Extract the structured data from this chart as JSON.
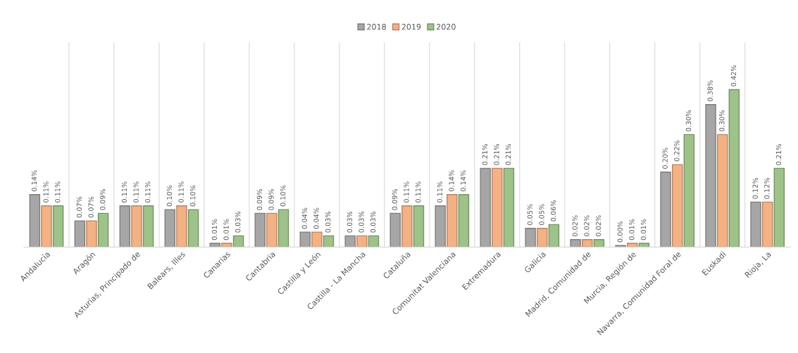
{
  "chart_data": {
    "type": "bar",
    "categories": [
      "Andalucía",
      "Aragón",
      "Asturias, Principado de",
      "Balears, Illes",
      "Canarias",
      "Cantabria",
      "Castilla y León",
      "Castilla - La Mancha",
      "Cataluña",
      "Comunitat Valenciana",
      "Extremadura",
      "Galicia",
      "Madrid, Comunidad de",
      "Murcia, Región de",
      "Navarra, Comunidad Foral de",
      "Euskadi",
      "Rioja, La"
    ],
    "series": [
      {
        "name": "2018",
        "color": "#a6a6a6",
        "values": [
          0.14,
          0.07,
          0.11,
          0.1,
          0.01,
          0.09,
          0.04,
          0.03,
          0.09,
          0.11,
          0.21,
          0.05,
          0.02,
          0.004,
          0.2,
          0.38,
          0.12
        ],
        "value_labels": [
          "0.14%",
          "0.07%",
          "0.11%",
          "0.10%",
          "0.01%",
          "0.09%",
          "0.04%",
          "0.03%",
          "0.09%",
          "0.11%",
          "0.21%",
          "0.05%",
          "0.02%",
          "0.00%",
          "0.20%",
          "0.38%",
          "0.12%"
        ]
      },
      {
        "name": "2019",
        "color": "#f4b183",
        "values": [
          0.11,
          0.07,
          0.11,
          0.11,
          0.01,
          0.09,
          0.04,
          0.03,
          0.11,
          0.14,
          0.21,
          0.05,
          0.02,
          0.01,
          0.22,
          0.3,
          0.12
        ],
        "value_labels": [
          "0.11%",
          "0.07%",
          "0.11%",
          "0.11%",
          "0.01%",
          "0.09%",
          "0.04%",
          "0.03%",
          "0.11%",
          "0.14%",
          "0.21%",
          "0.05%",
          "0.02%",
          "0.01%",
          "0.22%",
          "0.30%",
          "0.12%"
        ]
      },
      {
        "name": "2020",
        "color": "#9dc388",
        "values": [
          0.11,
          0.09,
          0.11,
          0.1,
          0.03,
          0.1,
          0.03,
          0.03,
          0.11,
          0.14,
          0.21,
          0.06,
          0.02,
          0.01,
          0.3,
          0.42,
          0.21
        ],
        "value_labels": [
          "0.11%",
          "0.09%",
          "0.11%",
          "0.10%",
          "0.03%",
          "0.10%",
          "0.03%",
          "0.03%",
          "0.11%",
          "0.14%",
          "0.21%",
          "0.06%",
          "0.02%",
          "0.01%",
          "0.30%",
          "0.42%",
          "0.21%"
        ]
      }
    ],
    "grid": "x",
    "legend": "top"
  }
}
